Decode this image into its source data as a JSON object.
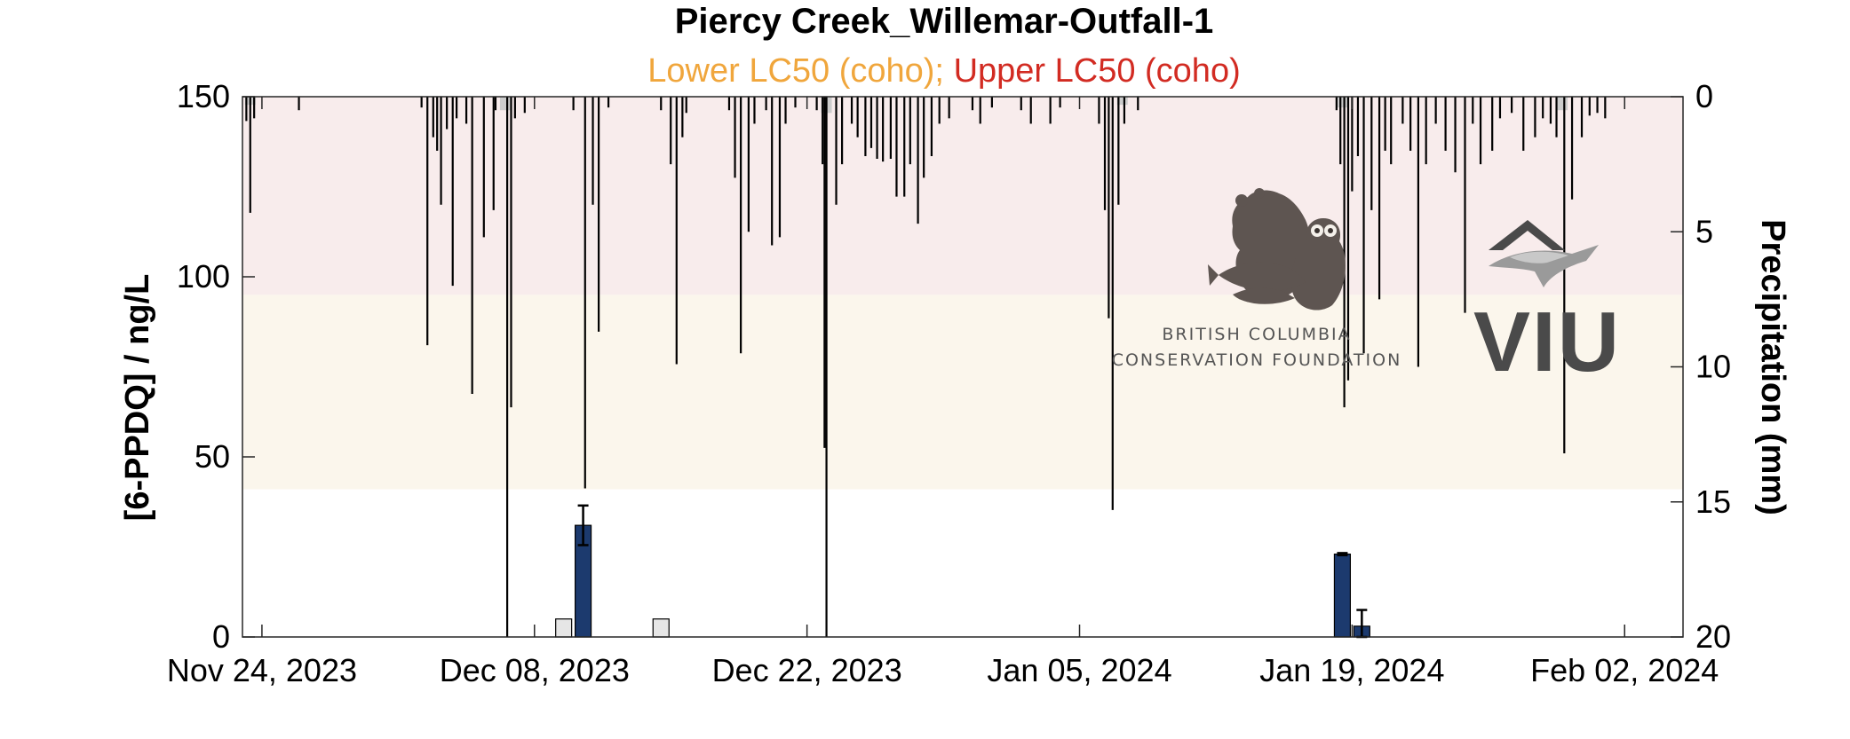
{
  "title": "Piercy Creek_Willemar-Outfall-1",
  "subtitle": {
    "lower": "Lower LC50 (coho);",
    "upper": "Upper LC50 (coho)",
    "lower_color": "#f0a63c",
    "upper_color": "#d22b22"
  },
  "logos": {
    "bccf_line1": "BRITISH COLUMBIA",
    "bccf_line2": "CONSERVATION FOUNDATION",
    "viu": "VIU"
  },
  "chart_data": {
    "type": "bar",
    "ylabel": "[6-PPDQ] / ng/L",
    "y2label": "Precipitation (mm)",
    "ylim": [
      0,
      150
    ],
    "yticks": [
      0,
      50,
      100,
      150
    ],
    "y2lim": [
      0,
      20
    ],
    "y2ticks": [
      0,
      5,
      10,
      15,
      20
    ],
    "y2_reversed": true,
    "xlim": [
      "2023-11-23",
      "2024-02-05"
    ],
    "xticks": [
      "2023-11-24",
      "2023-12-08",
      "2023-12-22",
      "2024-01-05",
      "2024-01-19",
      "2024-02-02"
    ],
    "xticklabels": [
      "Nov 24, 2023",
      "Dec 08, 2023",
      "Dec 22, 2023",
      "Jan 05, 2024",
      "Jan 19, 2024",
      "Feb 02, 2024"
    ],
    "bands": [
      {
        "name": "Lower LC50 (coho)",
        "from": 41,
        "to": 95,
        "color": "#fbf6ec"
      },
      {
        "name": "Upper LC50 (coho)",
        "from": 95,
        "to": 150,
        "color": "#f8ecec"
      }
    ],
    "grid": false,
    "series": [
      {
        "type": "bar",
        "color": "#1c3a6e",
        "points": [
          {
            "x": "2023-12-10",
            "y": 31,
            "err": 5.5
          },
          {
            "x": "2024-01-18",
            "y": 23,
            "err": 0.3
          },
          {
            "x": "2024-01-19",
            "y": 3,
            "err": 4.5
          }
        ]
      },
      {
        "type": "bar",
        "color": "#e6e6e6",
        "points": [
          {
            "x": "2023-12-09",
            "y": 5
          },
          {
            "x": "2023-12-14",
            "y": 5
          }
        ]
      },
      {
        "type": "precipitation",
        "axis": "right",
        "color": "#000000",
        "points": [
          {
            "x": "2023-11-23.2",
            "y": 0.9
          },
          {
            "x": "2023-11-23.4",
            "y": 4.3
          },
          {
            "x": "2023-11-23.6",
            "y": 0.8
          },
          {
            "x": "2023-11-25.9",
            "y": 0.5
          },
          {
            "x": "2023-12-02.2",
            "y": 0.4
          },
          {
            "x": "2023-12-02.5",
            "y": 9.2
          },
          {
            "x": "2023-12-02.8",
            "y": 1.5
          },
          {
            "x": "2023-12-03.0",
            "y": 2.0
          },
          {
            "x": "2023-12-03.2",
            "y": 4.0
          },
          {
            "x": "2023-12-03.5",
            "y": 1.2
          },
          {
            "x": "2023-12-03.8",
            "y": 7.0
          },
          {
            "x": "2023-12-04.0",
            "y": 0.8
          },
          {
            "x": "2023-12-04.5",
            "y": 1.0
          },
          {
            "x": "2023-12-04.8",
            "y": 11.0
          },
          {
            "x": "2023-12-05.4",
            "y": 5.2
          },
          {
            "x": "2023-12-05.9",
            "y": 4.2
          },
          {
            "x": "2023-12-06.0",
            "y": 0.5
          },
          {
            "x": "2023-12-06.6",
            "y": 20.0
          },
          {
            "x": "2023-12-06.8",
            "y": 11.5
          },
          {
            "x": "2023-12-07.0",
            "y": 0.8
          },
          {
            "x": "2023-12-07.5",
            "y": 0.6
          },
          {
            "x": "2023-12-10.0",
            "y": 0.5
          },
          {
            "x": "2023-12-10.6",
            "y": 14.5
          },
          {
            "x": "2023-12-11.0",
            "y": 4.0
          },
          {
            "x": "2023-12-11.3",
            "y": 8.7
          },
          {
            "x": "2023-12-11.8",
            "y": 0.4
          },
          {
            "x": "2023-12-14.5",
            "y": 0.5
          },
          {
            "x": "2023-12-15.0",
            "y": 2.5
          },
          {
            "x": "2023-12-15.3",
            "y": 9.9
          },
          {
            "x": "2023-12-15.6",
            "y": 1.5
          },
          {
            "x": "2023-12-15.8",
            "y": 0.6
          },
          {
            "x": "2023-12-18.0",
            "y": 0.5
          },
          {
            "x": "2023-12-18.3",
            "y": 3.0
          },
          {
            "x": "2023-12-18.6",
            "y": 9.5
          },
          {
            "x": "2023-12-19.0",
            "y": 5.0
          },
          {
            "x": "2023-12-19.3",
            "y": 1.0
          },
          {
            "x": "2023-12-19.9",
            "y": 0.5
          },
          {
            "x": "2023-12-20.2",
            "y": 5.5
          },
          {
            "x": "2023-12-20.6",
            "y": 5.2
          },
          {
            "x": "2023-12-20.9",
            "y": 1.0
          },
          {
            "x": "2023-12-21.4",
            "y": 0.4
          },
          {
            "x": "2023-12-22.5",
            "y": 0.5
          },
          {
            "x": "2023-12-22.8",
            "y": 2.5
          },
          {
            "x": "2023-12-22.9",
            "y": 13.0
          },
          {
            "x": "2023-12-23.0",
            "y": 20.0
          },
          {
            "x": "2023-12-23.5",
            "y": 4.0
          },
          {
            "x": "2023-12-23.8",
            "y": 2.5
          },
          {
            "x": "2023-12-24.3",
            "y": 1.0
          },
          {
            "x": "2023-12-24.6",
            "y": 1.5
          },
          {
            "x": "2023-12-25.0",
            "y": 2.2
          },
          {
            "x": "2023-12-25.3",
            "y": 1.9
          },
          {
            "x": "2023-12-25.6",
            "y": 2.3
          },
          {
            "x": "2023-12-25.9",
            "y": 2.4
          },
          {
            "x": "2023-12-26.3",
            "y": 2.3
          },
          {
            "x": "2023-12-26.6",
            "y": 3.7
          },
          {
            "x": "2023-12-27.0",
            "y": 3.7
          },
          {
            "x": "2023-12-27.3",
            "y": 2.5
          },
          {
            "x": "2023-12-27.7",
            "y": 4.7
          },
          {
            "x": "2023-12-28.0",
            "y": 3.0
          },
          {
            "x": "2023-12-28.4",
            "y": 2.2
          },
          {
            "x": "2023-12-28.8",
            "y": 1.0
          },
          {
            "x": "2023-12-29.3",
            "y": 0.8
          },
          {
            "x": "2023-12-30.5",
            "y": 0.5
          },
          {
            "x": "2023-12-30.9",
            "y": 1.0
          },
          {
            "x": "2023-12-31.5",
            "y": 0.4
          },
          {
            "x": "2024-01-02.0",
            "y": 0.5
          },
          {
            "x": "2024-01-02.5",
            "y": 1.0
          },
          {
            "x": "2024-01-03.5",
            "y": 1.0
          },
          {
            "x": "2024-01-04.0",
            "y": 0.4
          },
          {
            "x": "2024-01-06.0",
            "y": 1.0
          },
          {
            "x": "2024-01-06.3",
            "y": 4.2
          },
          {
            "x": "2024-01-06.5",
            "y": 8.2
          },
          {
            "x": "2024-01-06.7",
            "y": 15.3
          },
          {
            "x": "2024-01-07.0",
            "y": 4.0
          },
          {
            "x": "2024-01-07.3",
            "y": 1.0
          },
          {
            "x": "2024-01-08.0",
            "y": 0.5
          },
          {
            "x": "2024-01-18.2",
            "y": 0.5
          },
          {
            "x": "2024-01-18.4",
            "y": 2.5
          },
          {
            "x": "2024-01-18.6",
            "y": 11.5
          },
          {
            "x": "2024-01-18.8",
            "y": 10.5
          },
          {
            "x": "2024-01-19.0",
            "y": 3.5
          },
          {
            "x": "2024-01-19.3",
            "y": 2.2
          },
          {
            "x": "2024-01-19.6",
            "y": 9.5
          },
          {
            "x": "2024-01-20.0",
            "y": 4.2
          },
          {
            "x": "2024-01-20.4",
            "y": 7.5
          },
          {
            "x": "2024-01-20.7",
            "y": 2.0
          },
          {
            "x": "2024-01-21.0",
            "y": 2.5
          },
          {
            "x": "2024-01-21.6",
            "y": 1.0
          },
          {
            "x": "2024-01-22.0",
            "y": 2.0
          },
          {
            "x": "2024-01-22.4",
            "y": 10.0
          },
          {
            "x": "2024-01-22.8",
            "y": 2.5
          },
          {
            "x": "2024-01-23.3",
            "y": 1.0
          },
          {
            "x": "2024-01-23.8",
            "y": 2.0
          },
          {
            "x": "2024-01-24.3",
            "y": 2.8
          },
          {
            "x": "2024-01-24.8",
            "y": 8.0
          },
          {
            "x": "2024-01-25.2",
            "y": 1.0
          },
          {
            "x": "2024-01-25.6",
            "y": 2.5
          },
          {
            "x": "2024-01-26.2",
            "y": 2.0
          },
          {
            "x": "2024-01-26.6",
            "y": 0.8
          },
          {
            "x": "2024-01-27.2",
            "y": 0.6
          },
          {
            "x": "2024-01-27.8",
            "y": 2.0
          },
          {
            "x": "2024-01-28.4",
            "y": 1.5
          },
          {
            "x": "2024-01-28.8",
            "y": 0.8
          },
          {
            "x": "2024-01-29.2",
            "y": 1.0
          },
          {
            "x": "2024-01-29.5",
            "y": 1.5
          },
          {
            "x": "2024-01-29.9",
            "y": 13.2
          },
          {
            "x": "2024-01-30.3",
            "y": 3.8
          },
          {
            "x": "2024-01-30.8",
            "y": 1.5
          },
          {
            "x": "2024-01-31.2",
            "y": 0.7
          },
          {
            "x": "2024-01-31.6",
            "y": 0.6
          },
          {
            "x": "2024-02-01.0",
            "y": 0.8
          }
        ]
      },
      {
        "type": "precipitation-trace",
        "axis": "right",
        "color": "#cccccc",
        "points": [
          {
            "x": "2023-11-23.4",
            "y": 0.3
          },
          {
            "x": "2023-12-06.5",
            "y": 0.5
          },
          {
            "x": "2023-12-23.0",
            "y": 0.6
          },
          {
            "x": "2024-01-07.2",
            "y": 0.3
          },
          {
            "x": "2024-01-18.5",
            "y": 0.4
          },
          {
            "x": "2024-01-29.8",
            "y": 0.5
          }
        ]
      }
    ]
  }
}
